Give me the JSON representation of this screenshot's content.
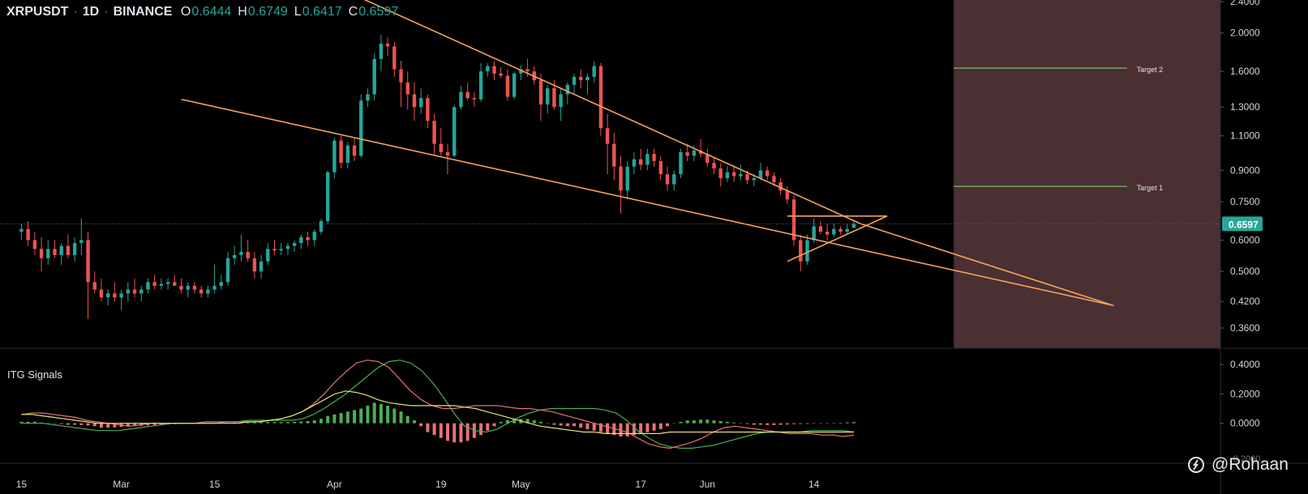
{
  "header": {
    "symbol": "XRPUSDT",
    "interval": "1D",
    "exchange": "BINANCE",
    "open_key": "O",
    "open_val": "0.6444",
    "high_key": "H",
    "high_val": "0.6749",
    "low_key": "L",
    "low_val": "0.6417",
    "close_key": "C",
    "close_val": "0.6597"
  },
  "indicator": {
    "title": "ITG Signals"
  },
  "watermark": {
    "text": "@Rohaan"
  },
  "colors": {
    "up": "#26a69a",
    "down": "#ef5350",
    "trend": "#f5a35c",
    "target": "#6aab5c",
    "zone": "#4a2f33",
    "price_badge": "#26a69a",
    "macd_green": "#4caf50",
    "macd_red": "#e57373",
    "macd_yellow": "#e8e07a"
  },
  "chart_data": [
    {
      "type": "candlestick",
      "title": "XRPUSDT 1D BINANCE",
      "scale": "log",
      "ylim": [
        0.32,
        2.4
      ],
      "price_ticks": [
        "2.4000",
        "2.0000",
        "1.6000",
        "1.3000",
        "1.1000",
        "0.9000",
        "0.7500",
        "0.6000",
        "0.5000",
        "0.4200",
        "0.3600"
      ],
      "price_tick_values": [
        2.4,
        2.0,
        1.6,
        1.3,
        1.1,
        0.9,
        0.75,
        0.6,
        0.5,
        0.42,
        0.36
      ],
      "last_price": "0.6597",
      "x_ticks": [
        "15",
        "Mar",
        "15",
        "Apr",
        "19",
        "May",
        "17",
        "Jun",
        "14"
      ],
      "x_tick_days": [
        0,
        15,
        29,
        47,
        63,
        75,
        93,
        103,
        119
      ],
      "day_range": [
        -2,
        177
      ],
      "candles": [
        [
          0.63,
          0.66,
          0.6,
          0.64
        ],
        [
          0.64,
          0.67,
          0.58,
          0.6
        ],
        [
          0.6,
          0.63,
          0.55,
          0.57
        ],
        [
          0.57,
          0.61,
          0.5,
          0.54
        ],
        [
          0.54,
          0.6,
          0.52,
          0.57
        ],
        [
          0.57,
          0.6,
          0.54,
          0.55
        ],
        [
          0.55,
          0.59,
          0.52,
          0.58
        ],
        [
          0.58,
          0.62,
          0.54,
          0.55
        ],
        [
          0.55,
          0.61,
          0.53,
          0.59
        ],
        [
          0.59,
          0.68,
          0.55,
          0.6
        ],
        [
          0.6,
          0.63,
          0.38,
          0.47
        ],
        [
          0.47,
          0.5,
          0.44,
          0.45
        ],
        [
          0.45,
          0.48,
          0.42,
          0.43
        ],
        [
          0.43,
          0.45,
          0.41,
          0.44
        ],
        [
          0.44,
          0.47,
          0.42,
          0.43
        ],
        [
          0.43,
          0.45,
          0.4,
          0.44
        ],
        [
          0.44,
          0.47,
          0.42,
          0.45
        ],
        [
          0.45,
          0.48,
          0.43,
          0.44
        ],
        [
          0.44,
          0.46,
          0.42,
          0.45
        ],
        [
          0.45,
          0.48,
          0.44,
          0.47
        ],
        [
          0.47,
          0.49,
          0.45,
          0.46
        ],
        [
          0.46,
          0.48,
          0.45,
          0.465
        ],
        [
          0.465,
          0.48,
          0.45,
          0.47
        ],
        [
          0.47,
          0.49,
          0.46,
          0.46
        ],
        [
          0.46,
          0.48,
          0.44,
          0.45
        ],
        [
          0.45,
          0.47,
          0.43,
          0.46
        ],
        [
          0.46,
          0.47,
          0.44,
          0.45
        ],
        [
          0.45,
          0.46,
          0.43,
          0.44
        ],
        [
          0.44,
          0.46,
          0.43,
          0.45
        ],
        [
          0.45,
          0.52,
          0.44,
          0.46
        ],
        [
          0.46,
          0.49,
          0.45,
          0.47
        ],
        [
          0.47,
          0.56,
          0.46,
          0.54
        ],
        [
          0.54,
          0.58,
          0.52,
          0.55
        ],
        [
          0.55,
          0.62,
          0.53,
          0.56
        ],
        [
          0.56,
          0.6,
          0.53,
          0.54
        ],
        [
          0.54,
          0.56,
          0.48,
          0.5
        ],
        [
          0.5,
          0.55,
          0.48,
          0.53
        ],
        [
          0.53,
          0.59,
          0.52,
          0.57
        ],
        [
          0.57,
          0.6,
          0.55,
          0.565
        ],
        [
          0.565,
          0.59,
          0.55,
          0.57
        ],
        [
          0.57,
          0.59,
          0.55,
          0.58
        ],
        [
          0.58,
          0.6,
          0.56,
          0.59
        ],
        [
          0.59,
          0.62,
          0.57,
          0.61
        ],
        [
          0.61,
          0.63,
          0.58,
          0.6
        ],
        [
          0.6,
          0.64,
          0.58,
          0.63
        ],
        [
          0.63,
          0.68,
          0.62,
          0.67
        ],
        [
          0.67,
          0.9,
          0.66,
          0.89
        ],
        [
          0.89,
          1.09,
          0.86,
          1.07
        ],
        [
          1.07,
          1.1,
          0.91,
          0.94
        ],
        [
          0.94,
          1.06,
          0.91,
          1.04
        ],
        [
          1.04,
          1.09,
          0.95,
          0.98
        ],
        [
          0.98,
          1.4,
          0.97,
          1.35
        ],
        [
          1.35,
          1.45,
          1.3,
          1.4
        ],
        [
          1.4,
          1.78,
          1.35,
          1.72
        ],
        [
          1.72,
          1.98,
          1.6,
          1.88
        ],
        [
          1.88,
          1.95,
          1.75,
          1.85
        ],
        [
          1.85,
          1.9,
          1.55,
          1.62
        ],
        [
          1.62,
          1.7,
          1.3,
          1.5
        ],
        [
          1.5,
          1.6,
          1.28,
          1.4
        ],
        [
          1.4,
          1.5,
          1.2,
          1.3
        ],
        [
          1.3,
          1.45,
          1.25,
          1.37
        ],
        [
          1.37,
          1.4,
          1.15,
          1.2
        ],
        [
          1.2,
          1.25,
          0.98,
          1.05
        ],
        [
          1.05,
          1.15,
          0.98,
          1.0
        ],
        [
          1.0,
          1.05,
          0.88,
          0.98
        ],
        [
          0.98,
          1.32,
          0.97,
          1.3
        ],
        [
          1.3,
          1.47,
          1.28,
          1.42
        ],
        [
          1.42,
          1.5,
          1.35,
          1.37
        ],
        [
          1.37,
          1.42,
          1.3,
          1.36
        ],
        [
          1.36,
          1.68,
          1.34,
          1.6
        ],
        [
          1.6,
          1.68,
          1.55,
          1.65
        ],
        [
          1.65,
          1.7,
          1.52,
          1.58
        ],
        [
          1.58,
          1.64,
          1.54,
          1.56
        ],
        [
          1.56,
          1.62,
          1.35,
          1.38
        ],
        [
          1.38,
          1.6,
          1.36,
          1.58
        ],
        [
          1.58,
          1.66,
          1.52,
          1.62
        ],
        [
          1.62,
          1.72,
          1.55,
          1.6
        ],
        [
          1.6,
          1.65,
          1.48,
          1.52
        ],
        [
          1.52,
          1.58,
          1.2,
          1.32
        ],
        [
          1.32,
          1.48,
          1.25,
          1.45
        ],
        [
          1.45,
          1.52,
          1.28,
          1.3
        ],
        [
          1.3,
          1.45,
          1.2,
          1.4
        ],
        [
          1.4,
          1.5,
          1.32,
          1.48
        ],
        [
          1.48,
          1.58,
          1.4,
          1.55
        ],
        [
          1.55,
          1.62,
          1.45,
          1.52
        ],
        [
          1.52,
          1.58,
          1.4,
          1.55
        ],
        [
          1.55,
          1.7,
          1.5,
          1.65
        ],
        [
          1.65,
          1.68,
          1.1,
          1.15
        ],
        [
          1.15,
          1.25,
          0.88,
          1.05
        ],
        [
          1.05,
          1.12,
          0.85,
          0.92
        ],
        [
          0.92,
          0.98,
          0.7,
          0.8
        ],
        [
          0.8,
          0.95,
          0.76,
          0.92
        ],
        [
          0.92,
          1.0,
          0.88,
          0.96
        ],
        [
          0.96,
          1.02,
          0.9,
          0.93
        ],
        [
          0.93,
          1.02,
          0.9,
          0.99
        ],
        [
          0.99,
          1.02,
          0.92,
          0.95
        ],
        [
          0.95,
          0.98,
          0.85,
          0.88
        ],
        [
          0.88,
          0.92,
          0.8,
          0.83
        ],
        [
          0.83,
          0.9,
          0.8,
          0.88
        ],
        [
          0.88,
          1.02,
          0.86,
          1.0
        ],
        [
          1.0,
          1.05,
          0.95,
          0.98
        ],
        [
          0.98,
          1.04,
          0.95,
          1.01
        ],
        [
          1.01,
          1.08,
          0.97,
          0.99
        ],
        [
          0.99,
          1.02,
          0.92,
          0.94
        ],
        [
          0.94,
          0.97,
          0.88,
          0.91
        ],
        [
          0.91,
          0.94,
          0.82,
          0.86
        ],
        [
          0.86,
          0.92,
          0.84,
          0.89
        ],
        [
          0.89,
          0.93,
          0.84,
          0.87
        ],
        [
          0.87,
          0.93,
          0.85,
          0.88
        ],
        [
          0.88,
          0.9,
          0.83,
          0.85
        ],
        [
          0.85,
          0.88,
          0.82,
          0.86
        ],
        [
          0.86,
          0.94,
          0.85,
          0.9
        ],
        [
          0.9,
          0.92,
          0.85,
          0.87
        ],
        [
          0.87,
          0.89,
          0.82,
          0.84
        ],
        [
          0.84,
          0.86,
          0.78,
          0.8
        ],
        [
          0.8,
          0.82,
          0.74,
          0.76
        ],
        [
          0.76,
          0.78,
          0.58,
          0.6
        ],
        [
          0.6,
          0.62,
          0.5,
          0.53
        ],
        [
          0.53,
          0.62,
          0.52,
          0.6
        ],
        [
          0.6,
          0.68,
          0.59,
          0.65
        ],
        [
          0.65,
          0.67,
          0.62,
          0.63
        ],
        [
          0.63,
          0.66,
          0.6,
          0.62
        ],
        [
          0.62,
          0.66,
          0.61,
          0.64
        ],
        [
          0.64,
          0.65,
          0.62,
          0.63
        ],
        [
          0.63,
          0.66,
          0.62,
          0.64
        ],
        [
          0.6444,
          0.6749,
          0.6417,
          0.6597
        ]
      ],
      "trendlines": [
        {
          "from": [
            51,
            2.45
          ],
          "to": [
            126,
            0.66
          ]
        },
        {
          "from": [
            24,
            1.36
          ],
          "to": [
            164,
            0.41
          ]
        },
        {
          "from": [
            126,
            0.66
          ],
          "to": [
            164,
            0.41
          ]
        },
        {
          "from": [
            115,
            0.69
          ],
          "to": [
            130,
            0.69
          ]
        },
        {
          "from": [
            115,
            0.53
          ],
          "to": [
            130,
            0.69
          ]
        }
      ],
      "targets": [
        {
          "label": "Target 1",
          "value": 0.82,
          "from_day": 140,
          "to_day": 166
        },
        {
          "label": "Target 2",
          "value": 1.63,
          "from_day": 140,
          "to_day": 166
        }
      ],
      "projection_zone_start_day": 140
    },
    {
      "type": "line",
      "title": "ITG Signals",
      "ylim": [
        -0.25,
        0.5
      ],
      "y_ticks": [
        "0.4000",
        "0.2000",
        "0.0000"
      ],
      "y_tick_values": [
        0.4,
        0.2,
        0.0
      ],
      "cut_tick_label": "-0.2000",
      "histogram": [
        0.01,
        0.01,
        0.01,
        0.005,
        0,
        0,
        -0.005,
        -0.01,
        -0.01,
        -0.012,
        -0.015,
        -0.02,
        -0.03,
        -0.03,
        -0.028,
        -0.025,
        -0.022,
        -0.02,
        -0.018,
        -0.015,
        -0.012,
        -0.01,
        -0.008,
        -0.006,
        -0.005,
        -0.004,
        -0.003,
        -0.002,
        0,
        0.002,
        0.003,
        0.004,
        0.005,
        0.006,
        0.007,
        0.008,
        0.008,
        0.008,
        0.008,
        0.008,
        0.008,
        0.01,
        0.012,
        0.015,
        0.02,
        0.03,
        0.05,
        0.06,
        0.07,
        0.08,
        0.09,
        0.1,
        0.12,
        0.14,
        0.13,
        0.12,
        0.1,
        0.08,
        0.05,
        0.02,
        -0.02,
        -0.06,
        -0.08,
        -0.1,
        -0.12,
        -0.13,
        -0.13,
        -0.12,
        -0.1,
        -0.08,
        -0.05,
        -0.02,
        0.01,
        0.02,
        0.03,
        0.03,
        0.03,
        0.02,
        0.01,
        0,
        -0.01,
        -0.015,
        -0.02,
        -0.02,
        -0.03,
        -0.04,
        -0.05,
        -0.06,
        -0.07,
        -0.08,
        -0.09,
        -0.09,
        -0.08,
        -0.07,
        -0.06,
        -0.05,
        -0.04,
        -0.02,
        0,
        0.01,
        0.02,
        0.02,
        0.025,
        0.025,
        0.02,
        0.015,
        0.01,
        0.005,
        0,
        -0.005,
        -0.01,
        -0.01,
        -0.012,
        -0.012,
        -0.01,
        -0.008,
        -0.006,
        -0.005,
        -0.004,
        -0.003,
        -0.002,
        0,
        0.002,
        0.004,
        0.006,
        0.008
      ],
      "series": [
        {
          "color": "green",
          "values": [
            0.0,
            0.0,
            0.0,
            -0.01,
            -0.02,
            -0.03,
            -0.04,
            -0.05,
            -0.05,
            -0.05,
            -0.04,
            -0.03,
            -0.02,
            -0.01,
            0.0,
            0.0,
            0.0,
            0.0,
            0.0,
            0.01,
            0.01,
            0.02,
            0.02,
            0.02,
            0.02,
            0.02,
            0.03,
            0.06,
            0.1,
            0.15,
            0.2,
            0.26,
            0.32,
            0.38,
            0.42,
            0.43,
            0.41,
            0.36,
            0.28,
            0.18,
            0.07,
            -0.02,
            -0.05,
            -0.06,
            -0.04,
            0.0,
            0.04,
            0.07,
            0.09,
            0.1,
            0.1,
            0.1,
            0.1,
            0.1,
            0.09,
            0.07,
            0.02,
            -0.05,
            -0.1,
            -0.14,
            -0.16,
            -0.17,
            -0.17,
            -0.16,
            -0.15,
            -0.13,
            -0.11,
            -0.09,
            -0.07,
            -0.06,
            -0.06,
            -0.06,
            -0.06,
            -0.05,
            -0.05,
            -0.05,
            -0.05,
            -0.06
          ]
        },
        {
          "color": "red",
          "values": [
            0.06,
            0.07,
            0.07,
            0.06,
            0.05,
            0.04,
            0.02,
            0.01,
            0.0,
            -0.01,
            -0.02,
            -0.01,
            0.0,
            0.0,
            0.0,
            0.0,
            0.0,
            0.01,
            0.01,
            0.01,
            0.01,
            0.01,
            0.01,
            0.02,
            0.03,
            0.05,
            0.08,
            0.13,
            0.2,
            0.28,
            0.35,
            0.41,
            0.43,
            0.42,
            0.38,
            0.3,
            0.22,
            0.16,
            0.12,
            0.1,
            0.1,
            0.11,
            0.12,
            0.12,
            0.12,
            0.11,
            0.1,
            0.1,
            0.09,
            0.08,
            0.06,
            0.04,
            0.02,
            0.0,
            -0.02,
            -0.04,
            -0.06,
            -0.1,
            -0.14,
            -0.16,
            -0.17,
            -0.15,
            -0.13,
            -0.1,
            -0.06,
            -0.03,
            -0.02,
            -0.03,
            -0.04,
            -0.05,
            -0.06,
            -0.07,
            -0.07,
            -0.07,
            -0.08,
            -0.08,
            -0.09,
            -0.08
          ]
        },
        {
          "color": "yellow",
          "values": [
            0.06,
            0.06,
            0.05,
            0.04,
            0.03,
            0.02,
            0.01,
            0.0,
            0.0,
            0.0,
            0.0,
            0.0,
            0.0,
            0.0,
            0.0,
            0.0,
            0.0,
            0.0,
            0.0,
            0.0,
            0.0,
            0.01,
            0.01,
            0.02,
            0.03,
            0.05,
            0.08,
            0.12,
            0.16,
            0.2,
            0.22,
            0.21,
            0.19,
            0.16,
            0.14,
            0.13,
            0.12,
            0.12,
            0.12,
            0.12,
            0.12,
            0.11,
            0.1,
            0.08,
            0.06,
            0.04,
            0.02,
            0.0,
            -0.02,
            -0.03,
            -0.04,
            -0.05,
            -0.06,
            -0.06,
            -0.07,
            -0.07,
            -0.07,
            -0.07,
            -0.07,
            -0.07,
            -0.06,
            -0.06,
            -0.06,
            -0.06,
            -0.06,
            -0.06,
            -0.06,
            -0.06,
            -0.06,
            -0.06,
            -0.06,
            -0.06,
            -0.06,
            -0.06,
            -0.06,
            -0.06,
            -0.06,
            -0.06
          ]
        }
      ]
    }
  ]
}
